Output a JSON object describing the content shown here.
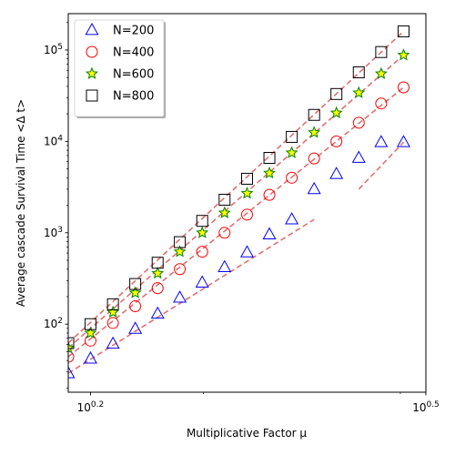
{
  "chart_data": {
    "type": "scatter",
    "title": "",
    "xlabel": "Multiplicative Factor μ",
    "ylabel": "Average cascade Survival Time <Δ t>",
    "x_scale": "log",
    "y_scale": "log",
    "xlim": [
      1.514,
      3.162
    ],
    "ylim": [
      18,
      250000
    ],
    "x_ticks": [
      {
        "value": 1.585,
        "base": "10",
        "exp": "0.2"
      },
      {
        "value": 3.162,
        "base": "10",
        "exp": "0.5"
      }
    ],
    "y_ticks": [
      {
        "value": 100,
        "base": "10",
        "exp": "2"
      },
      {
        "value": 1000,
        "base": "10",
        "exp": "3"
      },
      {
        "value": 10000,
        "base": "10",
        "exp": "4"
      },
      {
        "value": 100000,
        "base": "10",
        "exp": "5"
      }
    ],
    "grid": false,
    "legend_position": "top-left",
    "fit_line_color": "#e07070",
    "series": [
      {
        "name": "N=200",
        "marker": "triangle",
        "color": "#0000ff",
        "fill": "none",
        "x": [
          1.514,
          1.585,
          1.66,
          1.738,
          1.82,
          1.905,
          1.995,
          2.089,
          2.188,
          2.291,
          2.399,
          2.512,
          2.63,
          2.754,
          2.884,
          3.02
        ],
        "y": [
          29,
          42,
          61,
          89,
          130,
          195,
          285,
          420,
          610,
          960,
          1400,
          3000,
          4400,
          6600,
          9800,
          9800
        ],
        "fit_segments": [
          {
            "x": [
              1.514,
              2.512
            ],
            "y": [
              29,
              1400
            ]
          },
          {
            "x": [
              2.754,
              3.02
            ],
            "y": [
              3000,
              9800
            ]
          }
        ]
      },
      {
        "name": "N=400",
        "marker": "circle",
        "color": "#ff0000",
        "fill": "none",
        "x": [
          1.514,
          1.585,
          1.66,
          1.738,
          1.82,
          1.905,
          1.995,
          2.089,
          2.188,
          2.291,
          2.399,
          2.512,
          2.63,
          2.754,
          2.884,
          3.02
        ],
        "y": [
          44,
          66,
          103,
          157,
          248,
          400,
          620,
          1000,
          1580,
          2600,
          4000,
          6500,
          10000,
          16000,
          26000,
          39000
        ],
        "fit_segments": [
          {
            "x": [
              1.514,
              3.02
            ],
            "y": [
              44,
              39000
            ]
          }
        ]
      },
      {
        "name": "N=600",
        "marker": "star",
        "color": "#008000",
        "fill": "#ffff00",
        "x": [
          1.514,
          1.585,
          1.66,
          1.738,
          1.82,
          1.905,
          1.995,
          2.089,
          2.188,
          2.291,
          2.399,
          2.512,
          2.63,
          2.754,
          2.884,
          3.02
        ],
        "y": [
          55,
          80,
          135,
          220,
          360,
          620,
          1000,
          1650,
          2700,
          4500,
          7500,
          12500,
          20500,
          34000,
          55000,
          88000
        ],
        "fit_segments": [
          {
            "x": [
              1.514,
              3.02
            ],
            "y": [
              55,
              88000
            ]
          }
        ]
      },
      {
        "name": "N=800",
        "marker": "square",
        "color": "#000000",
        "fill": "none",
        "x": [
          1.514,
          1.585,
          1.66,
          1.738,
          1.82,
          1.905,
          1.995,
          2.089,
          2.188,
          2.291,
          2.399,
          2.512,
          2.63,
          2.754,
          2.884,
          3.02
        ],
        "y": [
          62,
          100,
          165,
          275,
          470,
          790,
          1350,
          2300,
          3900,
          6600,
          11200,
          19500,
          33000,
          57000,
          95000,
          160000
        ],
        "fit_segments": [
          {
            "x": [
              1.514,
              3.02
            ],
            "y": [
              62,
              160000
            ]
          }
        ]
      }
    ]
  }
}
